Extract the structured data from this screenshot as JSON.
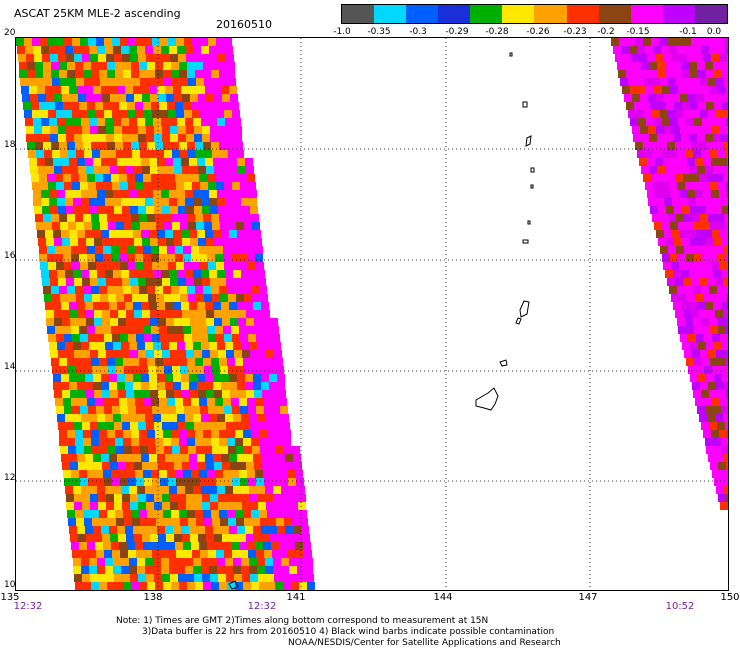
{
  "header": {
    "title": "ASCAT 25KM MLE-2 ascending",
    "date": "20160510"
  },
  "colorbar": {
    "colors": [
      "#555555",
      "#00d8ff",
      "#0060ff",
      "#1a2fd8",
      "#00b000",
      "#ffe800",
      "#ffa200",
      "#ff3000",
      "#8b4513",
      "#ff00ff",
      "#c000ff",
      "#7020a0"
    ],
    "labels": [
      "-1.0",
      "-0.35",
      "-0.3",
      "-0.29",
      "-0.28",
      "-0.26",
      "-0.23",
      "-0.2",
      "-0.15",
      "-0.1",
      "0.0"
    ]
  },
  "axes": {
    "x_ticks": [
      "135",
      "138",
      "141",
      "144",
      "147",
      "150"
    ],
    "y_ticks": [
      "20",
      "18",
      "16",
      "14",
      "12",
      "10"
    ],
    "x_range": [
      135,
      150
    ],
    "y_range": [
      10,
      20
    ],
    "grid": "dotted"
  },
  "times": {
    "left": "12:32",
    "middle": "12:32",
    "right": "10:52"
  },
  "notes": {
    "line1": "Note: 1) Times are GMT 2)Times along bottom correspond to measurement at 15N",
    "line2": "3)Data buffer is 22 hrs from 20160510 4) Black wind barbs indicate possible contamination",
    "line3": "NOAA/NESDIS/Center for Satellite Applications and Research"
  },
  "swaths": {
    "left_palette": [
      "#ffe800",
      "#ffa200",
      "#ff3000",
      "#ff3000",
      "#ffa200",
      "#ffe800",
      "#ff3000",
      "#8b4513",
      "#ff00ff",
      "#00b000",
      "#0060ff",
      "#00d8ff",
      "#ffa200",
      "#ff3000"
    ],
    "right_palette": [
      "#ff00ff",
      "#ff00ff",
      "#e000f0",
      "#ff00ff",
      "#8b4513",
      "#ff3000",
      "#ff00ff",
      "#c000ff"
    ]
  },
  "islands": {
    "outline_color": "#000000"
  }
}
